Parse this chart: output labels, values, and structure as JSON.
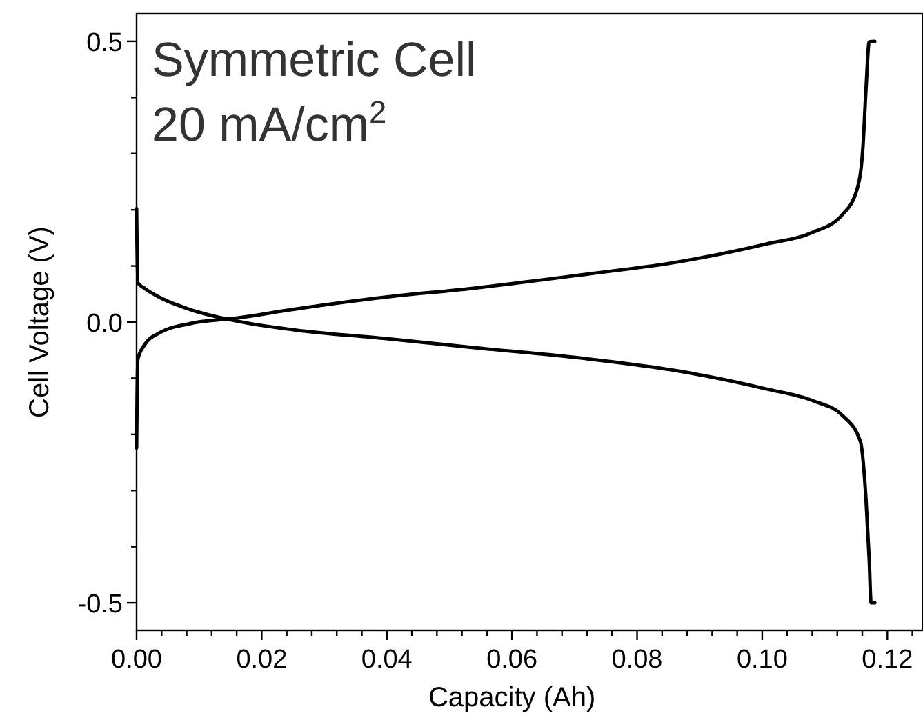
{
  "chart_data": {
    "type": "line",
    "xlabel": "Capacity (Ah)",
    "ylabel": "Cell Voltage (V)",
    "annotations": [
      "Symmetric Cell",
      "20 mA/cm$^{2}$"
    ],
    "xlim": [
      0,
      0.1257
    ],
    "ylim": [
      -0.549,
      0.549
    ],
    "xticks": [
      {
        "value": 0,
        "label": "0.00"
      },
      {
        "value": 0.004,
        "label": null
      },
      {
        "value": 0.008,
        "label": null
      },
      {
        "value": 0.012,
        "label": null
      },
      {
        "value": 0.016,
        "label": null
      },
      {
        "value": 0.02,
        "label": "0.02"
      },
      {
        "value": 0.024,
        "label": null
      },
      {
        "value": 0.028,
        "label": null
      },
      {
        "value": 0.032,
        "label": null
      },
      {
        "value": 0.036,
        "label": null
      },
      {
        "value": 0.04,
        "label": "0.04"
      },
      {
        "value": 0.044,
        "label": null
      },
      {
        "value": 0.048,
        "label": null
      },
      {
        "value": 0.052,
        "label": null
      },
      {
        "value": 0.056,
        "label": null
      },
      {
        "value": 0.06,
        "label": "0.06"
      },
      {
        "value": 0.064,
        "label": null
      },
      {
        "value": 0.068,
        "label": null
      },
      {
        "value": 0.072,
        "label": null
      },
      {
        "value": 0.076,
        "label": null
      },
      {
        "value": 0.08,
        "label": "0.08"
      },
      {
        "value": 0.084,
        "label": null
      },
      {
        "value": 0.088,
        "label": null
      },
      {
        "value": 0.092,
        "label": null
      },
      {
        "value": 0.096,
        "label": null
      },
      {
        "value": 0.1,
        "label": "0.10"
      },
      {
        "value": 0.104,
        "label": null
      },
      {
        "value": 0.108,
        "label": null
      },
      {
        "value": 0.112,
        "label": null
      },
      {
        "value": 0.116,
        "label": null
      },
      {
        "value": 0.12,
        "label": "0.12"
      },
      {
        "value": 0.124,
        "label": null
      }
    ],
    "yticks": [
      {
        "value": -0.5,
        "label": "-0.5"
      },
      {
        "value": -0.4,
        "label": null
      },
      {
        "value": -0.3,
        "label": null
      },
      {
        "value": -0.2,
        "label": null
      },
      {
        "value": -0.1,
        "label": null
      },
      {
        "value": 0,
        "label": "0.0"
      },
      {
        "value": 0.1,
        "label": null
      },
      {
        "value": 0.2,
        "label": null
      },
      {
        "value": 0.3,
        "label": null
      },
      {
        "value": 0.4,
        "label": null
      },
      {
        "value": 0.5,
        "label": "0.5"
      }
    ],
    "grid": false,
    "marker": "none",
    "line_style": "solid",
    "series": [
      {
        "color": "#000000",
        "x": [
          0,
          0.0002,
          0.0013,
          0.0037,
          0.0084,
          0.0159,
          0.0253,
          0.0394,
          0.0536,
          0.0724,
          0.0865,
          0.1006,
          0.1081,
          0.1128,
          0.1152,
          0.1161,
          0.1166,
          0.1171,
          0.118
        ],
        "values": [
          -0.224,
          -0.066,
          -0.04,
          -0.019,
          -0.003,
          0.007,
          0.023,
          0.044,
          0.06,
          0.086,
          0.107,
          0.139,
          0.16,
          0.191,
          0.238,
          0.312,
          0.417,
          0.499,
          0.5
        ]
      },
      {
        "color": "#000000",
        "x": [
          0,
          0.0002,
          0.0013,
          0.0037,
          0.0084,
          0.0159,
          0.0253,
          0.0394,
          0.0536,
          0.0724,
          0.0865,
          0.1006,
          0.1081,
          0.1128,
          0.1157,
          0.1166,
          0.1171,
          0.1174,
          0.118
        ],
        "values": [
          0.202,
          0.07,
          0.06,
          0.044,
          0.023,
          0.002,
          -0.014,
          -0.029,
          -0.045,
          -0.066,
          -0.087,
          -0.119,
          -0.14,
          -0.166,
          -0.213,
          -0.318,
          -0.423,
          -0.5,
          -0.5
        ]
      }
    ]
  }
}
